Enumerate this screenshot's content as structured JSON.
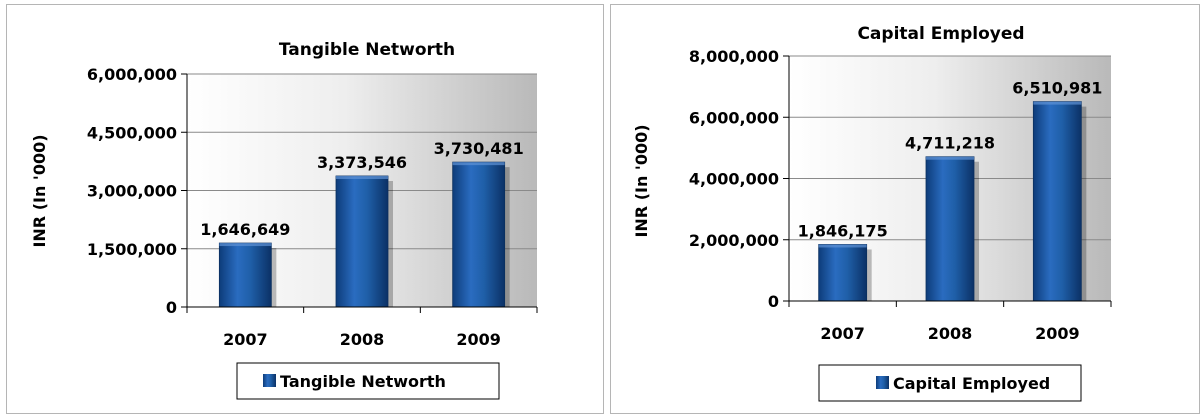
{
  "chart_data": [
    {
      "type": "bar",
      "title": "Tangible Networth",
      "xlabel": "",
      "ylabel": "INR (In '000)",
      "categories": [
        "2007",
        "2008",
        "2009"
      ],
      "series": [
        {
          "name": "Tangible Networth",
          "values": [
            1646649,
            3373546,
            3730481
          ],
          "color": "#1f5fa8"
        }
      ],
      "data_labels": [
        "1,646,649",
        "3,373,546",
        "3,730,481"
      ],
      "ylim": [
        0,
        6000000
      ],
      "yticks": [
        0,
        1500000,
        3000000,
        4500000,
        6000000
      ],
      "ytick_labels": [
        "0",
        "1,500,000",
        "3,000,000",
        "4,500,000",
        "6,000,000"
      ],
      "grid": true,
      "legend": "bottom"
    },
    {
      "type": "bar",
      "title": "Capital Employed",
      "xlabel": "",
      "ylabel": "INR (In '000)",
      "categories": [
        "2007",
        "2008",
        "2009"
      ],
      "series": [
        {
          "name": "Capital Employed",
          "values": [
            1846175,
            4711218,
            6510981
          ],
          "color": "#1f5fa8"
        }
      ],
      "data_labels": [
        "1,846,175",
        "4,711,218",
        "6,510,981"
      ],
      "ylim": [
        0,
        8000000
      ],
      "yticks": [
        0,
        2000000,
        4000000,
        6000000,
        8000000
      ],
      "ytick_labels": [
        "0",
        "2,000,000",
        "4,000,000",
        "6,000,000",
        "8,000,000"
      ],
      "grid": true,
      "legend": "bottom"
    }
  ]
}
